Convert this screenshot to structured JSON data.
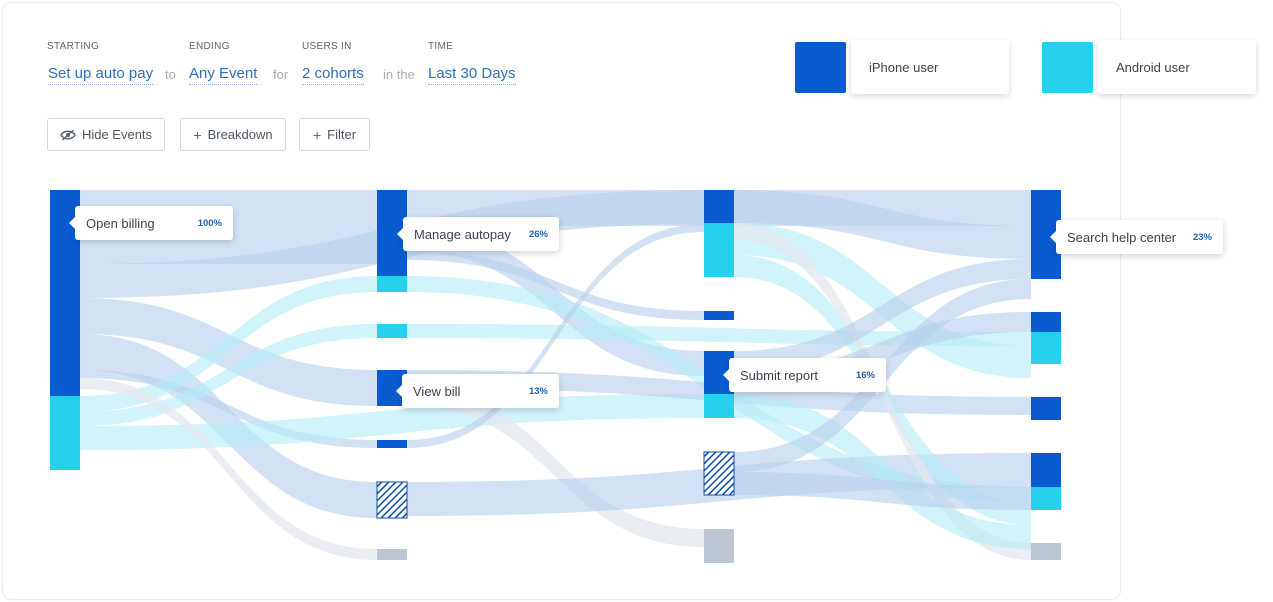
{
  "query": {
    "starting_label": "STARTING",
    "starting_value": "Set up auto pay",
    "conn_to": "to",
    "ending_label": "ENDING",
    "ending_value": "Any Event",
    "conn_for": "for",
    "users_label": "USERS IN",
    "users_value": "2 cohorts",
    "conn_in": "in the",
    "time_label": "TIME",
    "time_value": "Last 30 Days"
  },
  "toolbar": {
    "hide_events": "Hide Events",
    "breakdown": "Breakdown",
    "filter": "Filter",
    "plus_glyph": "+"
  },
  "colors": {
    "iphone": "#0a5bd0",
    "android": "#27d1ee",
    "iphone_flow": "#b7cfec",
    "android_flow": "#b4ecf7",
    "other_flow": "#e3e7ee",
    "other_node": "#bdc7d3",
    "hatch": "#0d4fa6"
  },
  "legend": [
    {
      "name": "iPhone user",
      "color": "#0a5bd0"
    },
    {
      "name": "Android user",
      "color": "#27d1ee"
    }
  ],
  "tooltips": {
    "open_billing": {
      "label": "Open billing",
      "pct": "100%"
    },
    "manage_autopay": {
      "label": "Manage autopay",
      "pct": "26%"
    },
    "view_bill": {
      "label": "View bill",
      "pct": "13%"
    },
    "submit_report": {
      "label": "Submit report",
      "pct": "16%"
    },
    "search_help": {
      "label": "Search help center",
      "pct": "23%"
    }
  },
  "chart_data": {
    "type": "sankey",
    "steps": 4,
    "series": [
      "iPhone user",
      "Android user"
    ],
    "nodes": [
      {
        "id": "s0",
        "step": 0,
        "label": "Open billing",
        "pct": "100%",
        "iphone": 206,
        "android": 74
      },
      {
        "id": "s1a",
        "step": 1,
        "label": "Manage autopay",
        "pct": "26%",
        "iphone": 86,
        "android": 16
      },
      {
        "id": "s1b",
        "step": 1,
        "android": 14
      },
      {
        "id": "s1c",
        "step": 1,
        "label": "View bill",
        "pct": "13%",
        "iphone": 36
      },
      {
        "id": "s1d",
        "step": 1,
        "iphone": 8
      },
      {
        "id": "s1e",
        "step": 1,
        "hatched": 36
      },
      {
        "id": "s1f",
        "step": 1,
        "other": 11
      },
      {
        "id": "s2a",
        "step": 2,
        "iphone": 33,
        "android": 54
      },
      {
        "id": "s2b",
        "step": 2,
        "iphone": 9
      },
      {
        "id": "s2c",
        "step": 2,
        "label": "Submit report",
        "pct": "16%",
        "iphone": 43,
        "android": 24
      },
      {
        "id": "s2d",
        "step": 2,
        "hatched": 43
      },
      {
        "id": "s2e",
        "step": 2,
        "other": 34
      },
      {
        "id": "s3a",
        "step": 3,
        "label": "Search help center",
        "pct": "23%",
        "iphone": 89
      },
      {
        "id": "s3b",
        "step": 3,
        "iphone": 20,
        "android": 32
      },
      {
        "id": "s3c",
        "step": 3,
        "iphone": 23
      },
      {
        "id": "s3d",
        "step": 3,
        "iphone": 34,
        "android": 23
      },
      {
        "id": "s3e",
        "step": 3,
        "other": 17
      }
    ],
    "links": [
      {
        "s": "s0",
        "t": "s1a",
        "c": "iphone",
        "v": 74
      },
      {
        "s": "s0",
        "t": "s2a",
        "c": "iphone",
        "v": 34
      },
      {
        "s": "s0",
        "t": "s1c",
        "c": "iphone",
        "v": 36
      },
      {
        "s": "s0",
        "t": "s1e",
        "c": "iphone",
        "v": 36
      },
      {
        "s": "s0",
        "t": "s1d",
        "c": "iphone",
        "v": 8
      },
      {
        "s": "s0",
        "t": "s1a",
        "c": "android",
        "v": 16
      },
      {
        "s": "s0",
        "t": "s1b",
        "c": "android",
        "v": 14
      },
      {
        "s": "s0",
        "t": "s2c",
        "c": "android",
        "v": 24
      },
      {
        "s": "s0",
        "t": "s1f",
        "c": "other",
        "v": 11
      },
      {
        "s": "s1a",
        "t": "s3a",
        "c": "iphone",
        "v": 36
      },
      {
        "s": "s1a",
        "t": "s2c",
        "c": "iphone",
        "v": 25
      },
      {
        "s": "s1a",
        "t": "s3d",
        "c": "android",
        "v": 16
      },
      {
        "s": "s1a",
        "t": "s2b",
        "c": "iphone",
        "v": 9
      },
      {
        "s": "s1b",
        "t": "s3b",
        "c": "android",
        "v": 14
      },
      {
        "s": "s1c",
        "t": "s3c",
        "c": "iphone",
        "v": 18
      },
      {
        "s": "s1c",
        "t": "s2e",
        "c": "other",
        "v": 18
      },
      {
        "s": "s1d",
        "t": "s2a",
        "c": "iphone",
        "v": 8
      },
      {
        "s": "s1e",
        "t": "s3d",
        "c": "iphone",
        "v": 34
      },
      {
        "s": "s2a",
        "t": "s3a",
        "c": "iphone",
        "v": 33
      },
      {
        "s": "s2a",
        "t": "s3b",
        "c": "android",
        "v": 32
      },
      {
        "s": "s2a",
        "t": "s3d",
        "c": "android",
        "v": 22
      },
      {
        "s": "s2a",
        "t": "s3e",
        "c": "other",
        "v": 17
      },
      {
        "s": "s2c",
        "t": "s3a",
        "c": "iphone",
        "v": 20
      },
      {
        "s": "s2c",
        "t": "s3b",
        "c": "iphone",
        "v": 20
      },
      {
        "s": "s2c",
        "t": "s3d",
        "c": "android",
        "v": 24
      },
      {
        "s": "s2d",
        "t": "s3a",
        "c": "iphone",
        "v": 20
      },
      {
        "s": "s2d",
        "t": "s3d",
        "c": "iphone",
        "v": 23
      }
    ]
  }
}
